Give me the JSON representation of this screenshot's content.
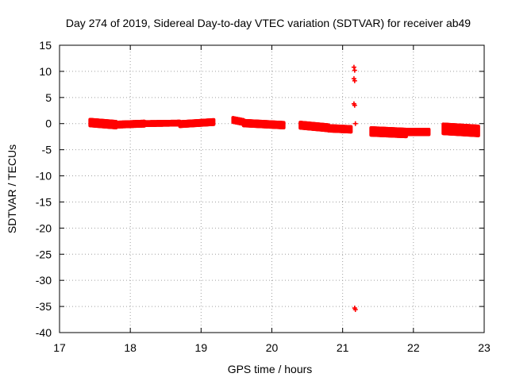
{
  "chart_data": {
    "type": "scatter",
    "title": "Day 274 of 2019, Sidereal Day-to-day VTEC variation (SDTVAR) for receiver ab49",
    "xlabel": "GPS time / hours",
    "ylabel": "SDTVAR / TECUs",
    "xlim": [
      17,
      23
    ],
    "ylim": [
      -40,
      15
    ],
    "xticks": [
      "17",
      "18",
      "19",
      "20",
      "21",
      "22",
      "23"
    ],
    "yticks": [
      "15",
      "10",
      "5",
      "0",
      "-5",
      "-10",
      "-15",
      "-20",
      "-25",
      "-30",
      "-35",
      "-40"
    ],
    "grid": true,
    "marker_color": "#ff0000",
    "series": [
      {
        "segments": [
          {
            "x_start": 17.43,
            "x_end": 17.8,
            "y_start": 0.2,
            "y_end": -0.2,
            "spread": 1.2
          },
          {
            "x_start": 17.8,
            "x_end": 18.2,
            "y_start": -0.2,
            "y_end": 0.0,
            "spread": 0.9
          },
          {
            "x_start": 18.2,
            "x_end": 18.7,
            "y_start": 0.0,
            "y_end": 0.1,
            "spread": 0.7
          },
          {
            "x_start": 18.7,
            "x_end": 19.18,
            "y_start": -0.1,
            "y_end": 0.3,
            "spread": 0.9
          },
          {
            "x_start": 19.45,
            "x_end": 19.6,
            "y_start": 0.7,
            "y_end": 0.3,
            "spread": 0.9
          },
          {
            "x_start": 19.6,
            "x_end": 20.17,
            "y_start": 0.1,
            "y_end": -0.3,
            "spread": 1.0
          },
          {
            "x_start": 20.4,
            "x_end": 20.8,
            "y_start": -0.3,
            "y_end": -0.8,
            "spread": 1.1
          },
          {
            "x_start": 20.8,
            "x_end": 21.12,
            "y_start": -0.9,
            "y_end": -1.1,
            "spread": 1.0
          },
          {
            "x_start": 21.4,
            "x_end": 21.9,
            "y_start": -1.5,
            "y_end": -1.8,
            "spread": 1.4
          },
          {
            "x_start": 21.9,
            "x_end": 22.22,
            "y_start": -1.6,
            "y_end": -1.6,
            "spread": 1.0
          },
          {
            "x_start": 22.42,
            "x_end": 22.92,
            "y_start": -1.0,
            "y_end": -1.4,
            "spread": 1.8
          }
        ],
        "points": [
          {
            "x": 21.16,
            "y": 10.8
          },
          {
            "x": 21.17,
            "y": 10.2
          },
          {
            "x": 21.16,
            "y": 8.6
          },
          {
            "x": 21.17,
            "y": 8.2
          },
          {
            "x": 21.16,
            "y": 3.8
          },
          {
            "x": 21.17,
            "y": 3.5
          },
          {
            "x": 21.18,
            "y": 0.0
          },
          {
            "x": 21.17,
            "y": -35.3
          },
          {
            "x": 21.18,
            "y": -35.6
          }
        ]
      }
    ]
  }
}
